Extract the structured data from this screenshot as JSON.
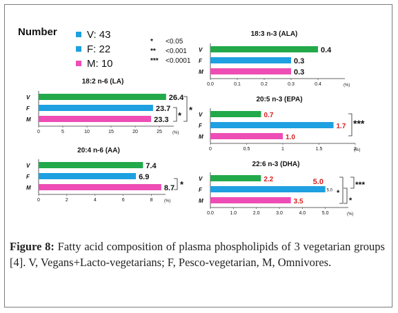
{
  "legend": {
    "title": "Number",
    "groups": [
      {
        "label": "V: 43",
        "color": "#1fa0e0"
      },
      {
        "label": "F: 22",
        "color": "#1fa0e0"
      },
      {
        "label": "M: 10",
        "color": "#ee4db5"
      }
    ],
    "significance": [
      {
        "mark": "*",
        "label": "<0.05"
      },
      {
        "mark": "**",
        "label": "<0.001"
      },
      {
        "mark": "***",
        "label": "<0.0001"
      }
    ]
  },
  "colors": {
    "V": "#22a94a",
    "F": "#1fa0e0",
    "M": "#ee4db5",
    "highlight": "#d81e1e"
  },
  "chart_data": [
    {
      "type": "bar",
      "orientation": "horizontal",
      "title": "18:2 n-6 (LA)",
      "categories": [
        "V",
        "F",
        "M"
      ],
      "values": [
        26.4,
        23.7,
        23.3
      ],
      "value_labels": [
        "26.4",
        "23.7",
        "23.3"
      ],
      "label_colors": [
        "black",
        "black",
        "black"
      ],
      "xlim": [
        0,
        28
      ],
      "xticks": [
        "0",
        "5",
        "10",
        "15",
        "20",
        "25"
      ],
      "xtick_values": [
        0,
        5,
        10,
        15,
        20,
        25
      ],
      "unit": "(%)",
      "significance": [
        {
          "between": [
            "F",
            "M"
          ],
          "mark": "*"
        },
        {
          "between": [
            "V",
            "M"
          ],
          "mark": "*"
        }
      ]
    },
    {
      "type": "bar",
      "orientation": "horizontal",
      "title": "20:4 n-6 (AA)",
      "categories": [
        "V",
        "F",
        "M"
      ],
      "values": [
        7.4,
        6.9,
        8.7
      ],
      "value_labels": [
        "7.4",
        "6.9",
        "8.7"
      ],
      "label_colors": [
        "black",
        "black",
        "black"
      ],
      "xlim": [
        0,
        9
      ],
      "xticks": [
        "0",
        "2",
        "4",
        "6",
        "8"
      ],
      "xtick_values": [
        0,
        2,
        4,
        6,
        8
      ],
      "unit": "(%)",
      "significance": [
        {
          "between": [
            "F",
            "M"
          ],
          "mark": "*"
        }
      ]
    },
    {
      "type": "bar",
      "orientation": "horizontal",
      "title": "18:3 n-3 (ALA)",
      "categories": [
        "V",
        "F",
        "M"
      ],
      "values": [
        0.4,
        0.3,
        0.3
      ],
      "value_labels": [
        "0.4",
        "0.3",
        "0.3"
      ],
      "label_colors": [
        "black",
        "black",
        "black"
      ],
      "xlim": [
        0,
        0.5
      ],
      "xticks": [
        "0.0",
        "0.1",
        "0.2",
        "0.3",
        "0.4"
      ],
      "xtick_values": [
        0,
        0.1,
        0.2,
        0.3,
        0.4
      ],
      "unit": "(%)",
      "significance": []
    },
    {
      "type": "bar",
      "orientation": "horizontal",
      "title": "20:5 n-3 (EPA)",
      "categories": [
        "V",
        "F",
        "M"
      ],
      "values": [
        0.7,
        1.7,
        1.0
      ],
      "value_labels": [
        "0.7",
        "1.7",
        "1.0"
      ],
      "label_colors": [
        "red",
        "red",
        "red"
      ],
      "xlim": [
        0,
        2.0
      ],
      "xticks": [
        "0",
        "0.5",
        "1",
        "1.5",
        "2"
      ],
      "xtick_values": [
        0,
        0.5,
        1,
        1.5,
        2
      ],
      "unit": "(%)",
      "significance": [
        {
          "between": [
            "V",
            "F"
          ],
          "mark": "***"
        }
      ]
    },
    {
      "type": "bar",
      "orientation": "horizontal",
      "title": "22:6 n-3 (DHA)",
      "categories": [
        "V",
        "F",
        "M"
      ],
      "values": [
        2.2,
        5.0,
        3.5
      ],
      "value_labels": [
        "2.2",
        "5.0",
        "3.5"
      ],
      "label_colors": [
        "red",
        "black",
        "red"
      ],
      "extra_label": "5.0",
      "xlim": [
        0,
        6.0
      ],
      "xticks": [
        "0.0",
        "1.0",
        "2.0",
        "3.0",
        "4.0",
        "5.0"
      ],
      "xtick_values": [
        0,
        1,
        2,
        3,
        4,
        5
      ],
      "unit": "(%)",
      "significance": [
        {
          "between": [
            "V",
            "F"
          ],
          "mark": "***"
        },
        {
          "between": [
            "V",
            "M"
          ],
          "mark": "*"
        },
        {
          "between": [
            "F",
            "M"
          ],
          "mark": "*"
        }
      ]
    }
  ],
  "caption": {
    "label": "Figure 8:",
    "text": " Fatty acid composition of plasma phospholipids of 3 vegetarian groups [4]. V, Vegans+Lacto-vegetarians; F, Pesco-vegetarian, M, Omnivores."
  }
}
